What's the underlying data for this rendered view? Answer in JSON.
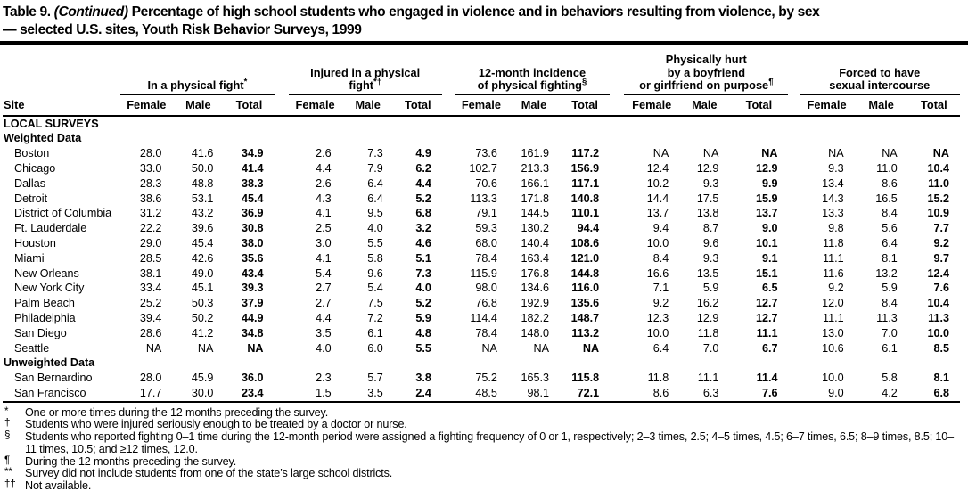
{
  "title": {
    "table_label": "Table 9.",
    "continued": "(Continued)",
    "line1_rest": "Percentage of high school students who engaged in violence and in behaviors resulting from violence, by sex",
    "line2": "— selected U.S. sites, Youth Risk Behavior Surveys, 1999"
  },
  "table": {
    "site_header": "Site",
    "sub_headers": [
      "Female",
      "Male",
      "Total"
    ],
    "groups": [
      {
        "lines": [
          "In a physical fight"
        ],
        "sup": "*"
      },
      {
        "lines": [
          "Injured in a physical",
          "fight"
        ],
        "sup": "*†"
      },
      {
        "lines": [
          "12-month incidence",
          "of physical fighting"
        ],
        "sup": "§"
      },
      {
        "lines": [
          "Physically hurt",
          "by a boyfriend",
          "or girlfriend on purpose"
        ],
        "sup": "¶"
      },
      {
        "lines": [
          "Forced to have",
          "sexual intercourse"
        ],
        "sup": ""
      }
    ],
    "sections": [
      {
        "label": "LOCAL SURVEYS",
        "subsections": [
          {
            "label": "Weighted Data",
            "rows": [
              {
                "site": "Boston",
                "values": [
                  "28.0",
                  "41.6",
                  "34.9",
                  "2.6",
                  "7.3",
                  "4.9",
                  "73.6",
                  "161.9",
                  "117.2",
                  "NA",
                  "NA",
                  "NA",
                  "NA",
                  "NA",
                  "NA"
                ]
              },
              {
                "site": "Chicago",
                "values": [
                  "33.0",
                  "50.0",
                  "41.4",
                  "4.4",
                  "7.9",
                  "6.2",
                  "102.7",
                  "213.3",
                  "156.9",
                  "12.4",
                  "12.9",
                  "12.9",
                  "9.3",
                  "11.0",
                  "10.4"
                ]
              },
              {
                "site": "Dallas",
                "values": [
                  "28.3",
                  "48.8",
                  "38.3",
                  "2.6",
                  "6.4",
                  "4.4",
                  "70.6",
                  "166.1",
                  "117.1",
                  "10.2",
                  "9.3",
                  "9.9",
                  "13.4",
                  "8.6",
                  "11.0"
                ]
              },
              {
                "site": "Detroit",
                "values": [
                  "38.6",
                  "53.1",
                  "45.4",
                  "4.3",
                  "6.4",
                  "5.2",
                  "113.3",
                  "171.8",
                  "140.8",
                  "14.4",
                  "17.5",
                  "15.9",
                  "14.3",
                  "16.5",
                  "15.2"
                ]
              },
              {
                "site": "District of Columbia",
                "values": [
                  "31.2",
                  "43.2",
                  "36.9",
                  "4.1",
                  "9.5",
                  "6.8",
                  "79.1",
                  "144.5",
                  "110.1",
                  "13.7",
                  "13.8",
                  "13.7",
                  "13.3",
                  "8.4",
                  "10.9"
                ]
              },
              {
                "site": "Ft. Lauderdale",
                "values": [
                  "22.2",
                  "39.6",
                  "30.8",
                  "2.5",
                  "4.0",
                  "3.2",
                  "59.3",
                  "130.2",
                  "94.4",
                  "9.4",
                  "8.7",
                  "9.0",
                  "9.8",
                  "5.6",
                  "7.7"
                ]
              },
              {
                "site": "Houston",
                "values": [
                  "29.0",
                  "45.4",
                  "38.0",
                  "3.0",
                  "5.5",
                  "4.6",
                  "68.0",
                  "140.4",
                  "108.6",
                  "10.0",
                  "9.6",
                  "10.1",
                  "11.8",
                  "6.4",
                  "9.2"
                ]
              },
              {
                "site": "Miami",
                "values": [
                  "28.5",
                  "42.6",
                  "35.6",
                  "4.1",
                  "5.8",
                  "5.1",
                  "78.4",
                  "163.4",
                  "121.0",
                  "8.4",
                  "9.3",
                  "9.1",
                  "11.1",
                  "8.1",
                  "9.7"
                ]
              },
              {
                "site": "New Orleans",
                "values": [
                  "38.1",
                  "49.0",
                  "43.4",
                  "5.4",
                  "9.6",
                  "7.3",
                  "115.9",
                  "176.8",
                  "144.8",
                  "16.6",
                  "13.5",
                  "15.1",
                  "11.6",
                  "13.2",
                  "12.4"
                ]
              },
              {
                "site": "New York City",
                "values": [
                  "33.4",
                  "45.1",
                  "39.3",
                  "2.7",
                  "5.4",
                  "4.0",
                  "98.0",
                  "134.6",
                  "116.0",
                  "7.1",
                  "5.9",
                  "6.5",
                  "9.2",
                  "5.9",
                  "7.6"
                ]
              },
              {
                "site": "Palm Beach",
                "values": [
                  "25.2",
                  "50.3",
                  "37.9",
                  "2.7",
                  "7.5",
                  "5.2",
                  "76.8",
                  "192.9",
                  "135.6",
                  "9.2",
                  "16.2",
                  "12.7",
                  "12.0",
                  "8.4",
                  "10.4"
                ]
              },
              {
                "site": "Philadelphia",
                "values": [
                  "39.4",
                  "50.2",
                  "44.9",
                  "4.4",
                  "7.2",
                  "5.9",
                  "114.4",
                  "182.2",
                  "148.7",
                  "12.3",
                  "12.9",
                  "12.7",
                  "11.1",
                  "11.3",
                  "11.3"
                ]
              },
              {
                "site": "San Diego",
                "values": [
                  "28.6",
                  "41.2",
                  "34.8",
                  "3.5",
                  "6.1",
                  "4.8",
                  "78.4",
                  "148.0",
                  "113.2",
                  "10.0",
                  "11.8",
                  "11.1",
                  "13.0",
                  "7.0",
                  "10.0"
                ]
              },
              {
                "site": "Seattle",
                "values": [
                  "NA",
                  "NA",
                  "NA",
                  "4.0",
                  "6.0",
                  "5.5",
                  "NA",
                  "NA",
                  "NA",
                  "6.4",
                  "7.0",
                  "6.7",
                  "10.6",
                  "6.1",
                  "8.5"
                ]
              }
            ]
          },
          {
            "label": "Unweighted Data",
            "rows": [
              {
                "site": "San Bernardino",
                "values": [
                  "28.0",
                  "45.9",
                  "36.0",
                  "2.3",
                  "5.7",
                  "3.8",
                  "75.2",
                  "165.3",
                  "115.8",
                  "11.8",
                  "11.1",
                  "11.4",
                  "10.0",
                  "5.8",
                  "8.1"
                ]
              },
              {
                "site": "San Francisco",
                "values": [
                  "17.7",
                  "30.0",
                  "23.4",
                  "1.5",
                  "3.5",
                  "2.4",
                  "48.5",
                  "98.1",
                  "72.1",
                  "8.6",
                  "6.3",
                  "7.6",
                  "9.0",
                  "4.2",
                  "6.8"
                ]
              }
            ]
          }
        ]
      }
    ]
  },
  "footnotes": [
    {
      "symbol": "*",
      "text": "One or more times during the 12 months preceding the survey."
    },
    {
      "symbol": "†",
      "text": "Students who were injured seriously enough to be treated by a doctor or nurse."
    },
    {
      "symbol": "§",
      "text": "Students who reported fighting 0–1 time during the 12-month period were assigned a fighting frequency of 0 or 1, respectively; 2–3 times, 2.5; 4–5 times, 4.5; 6–7 times, 6.5; 8–9 times, 8.5; 10–11 times, 10.5; and ≥12 times, 12.0."
    },
    {
      "symbol": "¶",
      "text": "During the 12 months preceding the survey."
    },
    {
      "symbol": "**",
      "text": "Survey did not include students from one of the state’s large school districts."
    },
    {
      "symbol": "††",
      "text": "Not available."
    }
  ]
}
